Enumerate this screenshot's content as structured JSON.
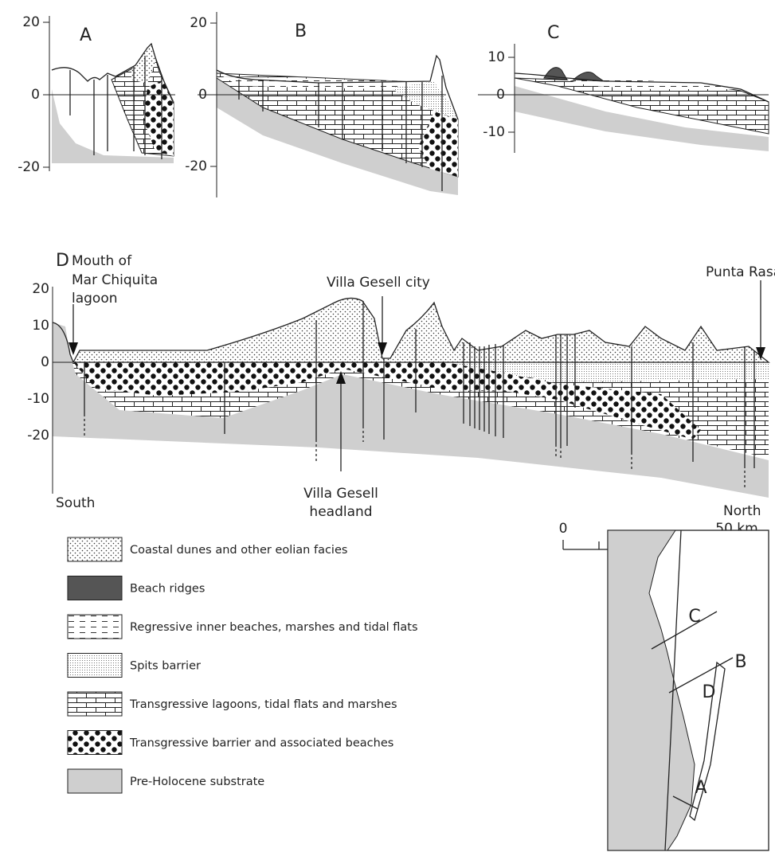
{
  "panels": [
    {
      "label": "A",
      "ticks": [
        20,
        0,
        -20
      ]
    },
    {
      "label": "B",
      "ticks": [
        20,
        0,
        -20
      ]
    },
    {
      "label": "C",
      "ticks": [
        10,
        0,
        -10
      ]
    },
    {
      "label": "D",
      "ticks": [
        20,
        10,
        0,
        -10,
        -20
      ]
    }
  ],
  "annotations": {
    "mouth": [
      "Mouth of",
      "Mar Chiquita",
      "lagoon"
    ],
    "city": "Villa Gesell city",
    "punta_rasa": "Punta Rasa",
    "headland": [
      "Villa Gesell",
      "headland"
    ],
    "south": "South",
    "north": "North"
  },
  "scale": {
    "start": "0",
    "end": "50 km"
  },
  "legend": [
    "Coastal dunes and other eolian facies",
    "Beach ridges",
    "Regressive inner beaches, marshes and tidal flats",
    "Spits barrier",
    "Transgressive lagoons, tidal flats and marshes",
    "Transgressive barrier and associated beaches",
    "Pre-Holocene substrate"
  ],
  "map": {
    "labels": [
      "C",
      "B",
      "D",
      "A"
    ]
  }
}
